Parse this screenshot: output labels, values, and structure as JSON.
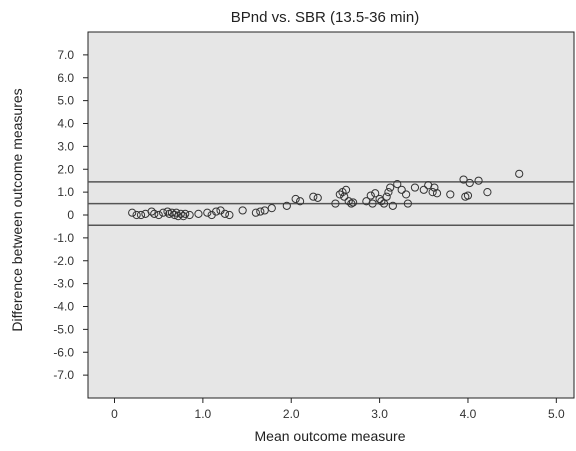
{
  "chart_data": {
    "type": "scatter",
    "title": "BPnd vs. SBR (13.5-36 min)",
    "xlabel": "Mean outcome measure",
    "ylabel": "Difference between outcome measures",
    "xlim": [
      -0.3,
      5.2
    ],
    "ylim": [
      -8.0,
      8.0
    ],
    "x_ticks": [
      "0",
      "1.0",
      "2.0",
      "3.0",
      "4.0",
      "5.0"
    ],
    "x_tick_values": [
      0,
      1,
      2,
      3,
      4,
      5
    ],
    "y_ticks": [
      "7.0",
      "6.0",
      "5.0",
      "4.0",
      "3.0",
      "2.0",
      "1.0",
      "0",
      "-1.0",
      "-2.0",
      "-3.0",
      "-4.0",
      "-5.0",
      "-6.0",
      "-7.0"
    ],
    "y_tick_values": [
      7,
      6,
      5,
      4,
      3,
      2,
      1,
      0,
      -1,
      -2,
      -3,
      -4,
      -5,
      -6,
      -7
    ],
    "reference_lines": [
      1.45,
      0.5,
      -0.45
    ],
    "grid": false,
    "colors": {
      "background": "#e6e6e6",
      "frame": "#222222",
      "points": "#333333",
      "lines": "#555555"
    },
    "points": [
      [
        0.2,
        0.1
      ],
      [
        0.25,
        0.0
      ],
      [
        0.3,
        0.0
      ],
      [
        0.35,
        0.05
      ],
      [
        0.42,
        0.15
      ],
      [
        0.45,
        0.05
      ],
      [
        0.5,
        0.0
      ],
      [
        0.55,
        0.1
      ],
      [
        0.6,
        0.15
      ],
      [
        0.62,
        0.05
      ],
      [
        0.65,
        0.1
      ],
      [
        0.68,
        0.0
      ],
      [
        0.7,
        0.1
      ],
      [
        0.72,
        -0.05
      ],
      [
        0.75,
        0.05
      ],
      [
        0.78,
        -0.05
      ],
      [
        0.8,
        0.05
      ],
      [
        0.85,
        0.0
      ],
      [
        0.95,
        0.05
      ],
      [
        1.05,
        0.1
      ],
      [
        1.1,
        0.0
      ],
      [
        1.15,
        0.15
      ],
      [
        1.2,
        0.2
      ],
      [
        1.25,
        0.05
      ],
      [
        1.3,
        0.0
      ],
      [
        1.45,
        0.2
      ],
      [
        1.6,
        0.1
      ],
      [
        1.65,
        0.15
      ],
      [
        1.7,
        0.2
      ],
      [
        1.78,
        0.3
      ],
      [
        1.95,
        0.4
      ],
      [
        2.05,
        0.7
      ],
      [
        2.1,
        0.6
      ],
      [
        2.25,
        0.8
      ],
      [
        2.3,
        0.75
      ],
      [
        2.5,
        0.5
      ],
      [
        2.55,
        0.9
      ],
      [
        2.58,
        1.0
      ],
      [
        2.6,
        0.8
      ],
      [
        2.62,
        1.1
      ],
      [
        2.65,
        0.6
      ],
      [
        2.68,
        0.5
      ],
      [
        2.7,
        0.55
      ],
      [
        2.85,
        0.6
      ],
      [
        2.9,
        0.85
      ],
      [
        2.92,
        0.5
      ],
      [
        2.95,
        0.95
      ],
      [
        3.0,
        0.7
      ],
      [
        3.02,
        0.6
      ],
      [
        3.05,
        0.5
      ],
      [
        3.08,
        0.8
      ],
      [
        3.1,
        1.0
      ],
      [
        3.12,
        1.2
      ],
      [
        3.15,
        0.4
      ],
      [
        3.2,
        1.35
      ],
      [
        3.25,
        1.1
      ],
      [
        3.3,
        0.9
      ],
      [
        3.32,
        0.5
      ],
      [
        3.4,
        1.2
      ],
      [
        3.5,
        1.1
      ],
      [
        3.55,
        1.3
      ],
      [
        3.6,
        1.0
      ],
      [
        3.62,
        1.2
      ],
      [
        3.65,
        0.95
      ],
      [
        3.8,
        0.9
      ],
      [
        3.95,
        1.55
      ],
      [
        3.97,
        0.8
      ],
      [
        4.0,
        0.85
      ],
      [
        4.02,
        1.4
      ],
      [
        4.12,
        1.5
      ],
      [
        4.22,
        1.0
      ],
      [
        4.58,
        1.8
      ]
    ]
  }
}
